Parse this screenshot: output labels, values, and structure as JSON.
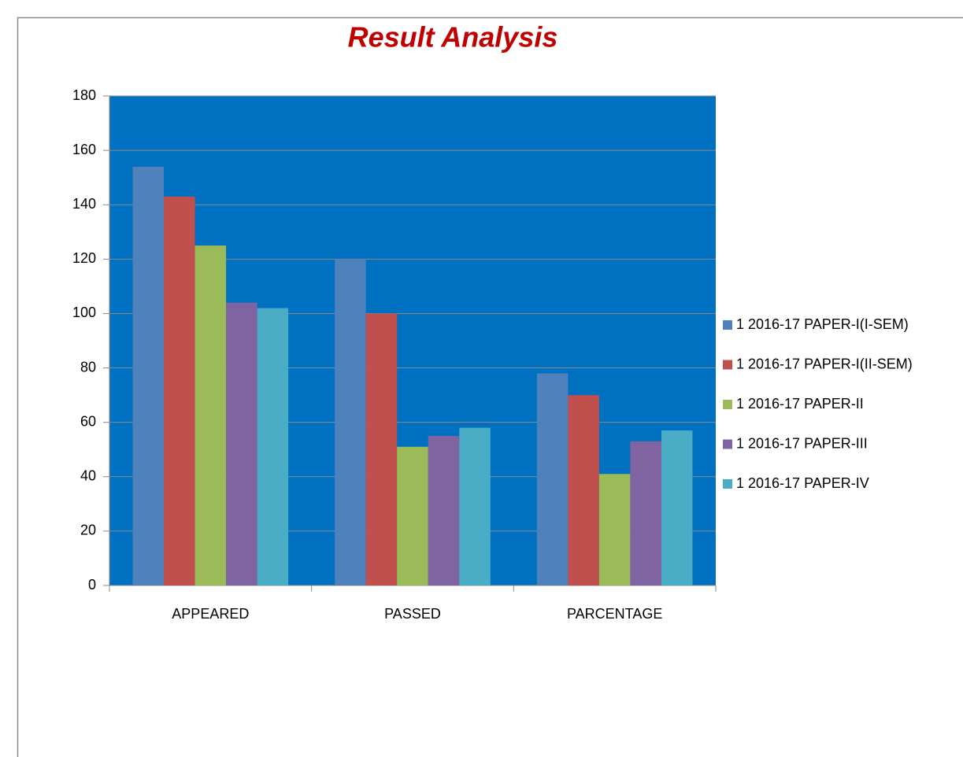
{
  "chart_data": {
    "type": "bar",
    "title": "Result Analysis",
    "categories": [
      "APPEARED",
      "PASSED",
      "PARCENTAGE"
    ],
    "series": [
      {
        "name": "1 2016-17 PAPER-I(I-SEM)",
        "color": "#4f81bd",
        "values": [
          154,
          120,
          78
        ]
      },
      {
        "name": "1 2016-17 PAPER-I(II-SEM)",
        "color": "#c0504d",
        "values": [
          143,
          100,
          70
        ]
      },
      {
        "name": "1 2016-17 PAPER-II",
        "color": "#9bbb59",
        "values": [
          125,
          51,
          41
        ]
      },
      {
        "name": "1 2016-17 PAPER-III",
        "color": "#8064a2",
        "values": [
          104,
          55,
          53
        ]
      },
      {
        "name": "1 2016-17 PAPER-IV",
        "color": "#4bacc6",
        "values": [
          102,
          58,
          57
        ]
      }
    ],
    "ylim": [
      0,
      180
    ],
    "yticks": [
      0,
      20,
      40,
      60,
      80,
      100,
      120,
      140,
      160,
      180
    ],
    "grid": true,
    "plot_background": "#0070c0",
    "legend": "right"
  }
}
